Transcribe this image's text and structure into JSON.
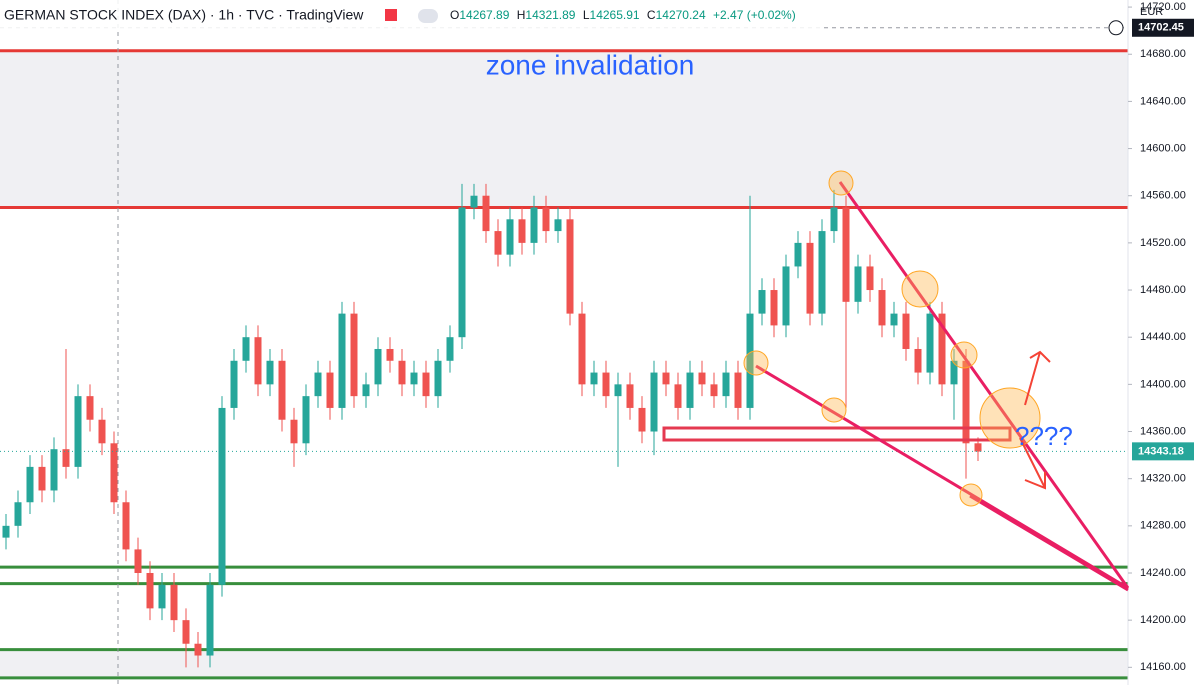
{
  "header": {
    "title": "GERMAN STOCK INDEX (DAX) · 1h · TVC · TradingView",
    "o_label": "O",
    "o": "14267.89",
    "h_label": "H",
    "h": "14321.89",
    "l_label": "L",
    "l": "14265.91",
    "c_label": "C",
    "c": "14270.24",
    "change": "+2.47 (+0.02%)",
    "currency": "EUR"
  },
  "chart_data": {
    "type": "candlestick",
    "annotations": [
      "zone invalidation",
      "????"
    ],
    "up_color": "#26a69a",
    "down_color": "#ef5350",
    "open": [
      14270,
      14280,
      14300,
      14330,
      14310,
      14345,
      14330,
      14390,
      14370,
      14350,
      14300,
      14260,
      14240,
      14210,
      14230,
      14200,
      14180,
      14170,
      14230,
      14380,
      14420,
      14440,
      14400,
      14420,
      14370,
      14350,
      14390,
      14410,
      14380,
      14460,
      14390,
      14400,
      14430,
      14420,
      14400,
      14410,
      14390,
      14420,
      14440,
      14550,
      14560,
      14530,
      14510,
      14540,
      14520,
      14550,
      14530,
      14540,
      14460,
      14400,
      14410,
      14390,
      14400,
      14380,
      14360,
      14410,
      14400,
      14380,
      14410,
      14400,
      14390,
      14410,
      14380,
      14460,
      14480,
      14450,
      14500,
      14520,
      14460,
      14530,
      14550,
      14470,
      14500,
      14480,
      14450,
      14460,
      14430,
      14410,
      14460,
      14400,
      14420,
      14350
    ],
    "high": [
      14290,
      14310,
      14340,
      14340,
      14355,
      14430,
      14400,
      14400,
      14380,
      14360,
      14310,
      14270,
      14250,
      14240,
      14240,
      14210,
      14190,
      14240,
      14390,
      14430,
      14450,
      14450,
      14430,
      14430,
      14380,
      14400,
      14420,
      14420,
      14470,
      14470,
      14410,
      14440,
      14440,
      14430,
      14420,
      14420,
      14430,
      14450,
      14570,
      14570,
      14570,
      14540,
      14550,
      14550,
      14560,
      14560,
      14550,
      14550,
      14470,
      14420,
      14420,
      14410,
      14410,
      14390,
      14420,
      14420,
      14410,
      14420,
      14420,
      14410,
      14420,
      14420,
      14560,
      14490,
      14490,
      14510,
      14530,
      14530,
      14540,
      14565,
      14560,
      14510,
      14510,
      14490,
      14470,
      14470,
      14440,
      14470,
      14470,
      14430,
      14430,
      14355
    ],
    "low": [
      14260,
      14270,
      14290,
      14300,
      14300,
      14320,
      14320,
      14360,
      14340,
      14290,
      14250,
      14230,
      14200,
      14200,
      14190,
      14160,
      14160,
      14160,
      14220,
      14370,
      14410,
      14390,
      14390,
      14360,
      14330,
      14340,
      14380,
      14370,
      14370,
      14380,
      14380,
      14390,
      14410,
      14390,
      14390,
      14380,
      14380,
      14410,
      14430,
      14540,
      14520,
      14500,
      14500,
      14510,
      14510,
      14520,
      14520,
      14450,
      14390,
      14390,
      14380,
      14330,
      14370,
      14350,
      14340,
      14390,
      14370,
      14370,
      14390,
      14380,
      14380,
      14370,
      14370,
      14450,
      14440,
      14440,
      14490,
      14450,
      14450,
      14520,
      14380,
      14460,
      14470,
      14440,
      14440,
      14420,
      14400,
      14400,
      14390,
      14370,
      14320,
      14335
    ],
    "close": [
      14280,
      14300,
      14330,
      14310,
      14345,
      14330,
      14390,
      14370,
      14350,
      14300,
      14260,
      14240,
      14210,
      14230,
      14200,
      14180,
      14170,
      14230,
      14380,
      14420,
      14440,
      14400,
      14420,
      14370,
      14350,
      14390,
      14410,
      14380,
      14460,
      14390,
      14400,
      14430,
      14420,
      14400,
      14410,
      14390,
      14420,
      14440,
      14550,
      14560,
      14530,
      14510,
      14540,
      14520,
      14550,
      14530,
      14540,
      14460,
      14400,
      14410,
      14390,
      14400,
      14380,
      14360,
      14410,
      14400,
      14380,
      14410,
      14400,
      14390,
      14410,
      14380,
      14460,
      14480,
      14450,
      14500,
      14520,
      14460,
      14530,
      14550,
      14470,
      14500,
      14480,
      14450,
      14460,
      14430,
      14410,
      14460,
      14400,
      14420,
      14350,
      14343
    ],
    "levels": [
      {
        "value": 14683,
        "color": "#e53935"
      },
      {
        "value": 14550,
        "color": "#e53935"
      },
      {
        "value": 14245,
        "color": "#388e3c"
      },
      {
        "value": 14231,
        "color": "#388e3c"
      },
      {
        "value": 14175,
        "color": "#388e3c"
      },
      {
        "value": 14151,
        "color": "#388e3c"
      }
    ],
    "last_price": 14343.18,
    "crosshair_price": 14702.45,
    "ylim": [
      14145,
      14726
    ],
    "yticks": [
      {
        "value": 14160,
        "label": "14160.00"
      },
      {
        "value": 14200,
        "label": "14200.00"
      },
      {
        "value": 14240,
        "label": "14240.00"
      },
      {
        "value": 14280,
        "label": "14280.00"
      },
      {
        "value": 14320,
        "label": "14320.00"
      },
      {
        "value": 14360,
        "label": "14360.00"
      },
      {
        "value": 14400,
        "label": "14400.00"
      },
      {
        "value": 14440,
        "label": "14440.00"
      },
      {
        "value": 14480,
        "label": "14480.00"
      },
      {
        "value": 14520,
        "label": "14520.00"
      },
      {
        "value": 14560,
        "label": "14560.00"
      },
      {
        "value": 14600,
        "label": "14600.00"
      },
      {
        "value": 14640,
        "label": "14640.00"
      },
      {
        "value": 14680,
        "label": "14680.00"
      },
      {
        "value": 14720,
        "label": "14720.00"
      }
    ]
  }
}
